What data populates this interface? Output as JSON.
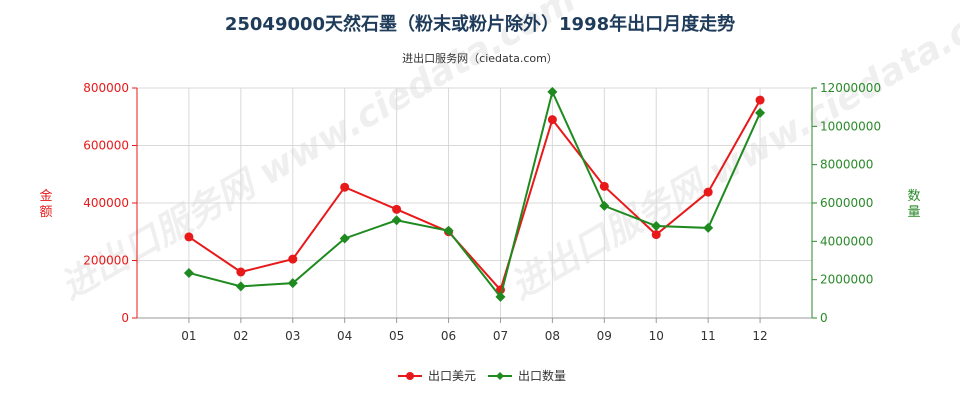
{
  "chart_data": {
    "type": "line",
    "title": "25049000天然石墨（粉末或粉片除外）1998年出口月度走势",
    "subtitle": "进出口服务网（ciedata.com）",
    "watermark": "进出口服务网 www.ciedata.com",
    "categories": [
      "01",
      "02",
      "03",
      "04",
      "05",
      "06",
      "07",
      "08",
      "09",
      "10",
      "11",
      "12"
    ],
    "y_left": {
      "label": "金额",
      "range": [
        0,
        800000
      ],
      "ticks": [
        0,
        200000,
        400000,
        600000,
        800000
      ],
      "tick_labels": [
        "0",
        "200000",
        "400000",
        "600000",
        "800000"
      ],
      "color": "#e8191a"
    },
    "y_right": {
      "label": "数量",
      "range": [
        0,
        12000000
      ],
      "ticks": [
        0,
        2000000,
        4000000,
        6000000,
        8000000,
        10000000,
        12000000
      ],
      "tick_labels": [
        "0",
        "2000000",
        "4000000",
        "6000000",
        "8000000",
        "10000000",
        "12000000"
      ],
      "color": "#2a8a2a"
    },
    "series": [
      {
        "name": "出口美元",
        "axis": "left",
        "color": "#e8191a",
        "marker": "circle",
        "values": [
          282000,
          160000,
          205000,
          455000,
          378000,
          300000,
          98000,
          690000,
          458000,
          290000,
          438000,
          758000
        ]
      },
      {
        "name": "出口数量",
        "axis": "right",
        "color": "#1f8a1f",
        "marker": "diamond",
        "values": [
          2350000,
          1650000,
          1820000,
          4150000,
          5100000,
          4550000,
          1100000,
          11800000,
          5850000,
          4800000,
          4700000,
          10700000
        ]
      }
    ],
    "grid": true,
    "legend_position": "bottom-center"
  }
}
